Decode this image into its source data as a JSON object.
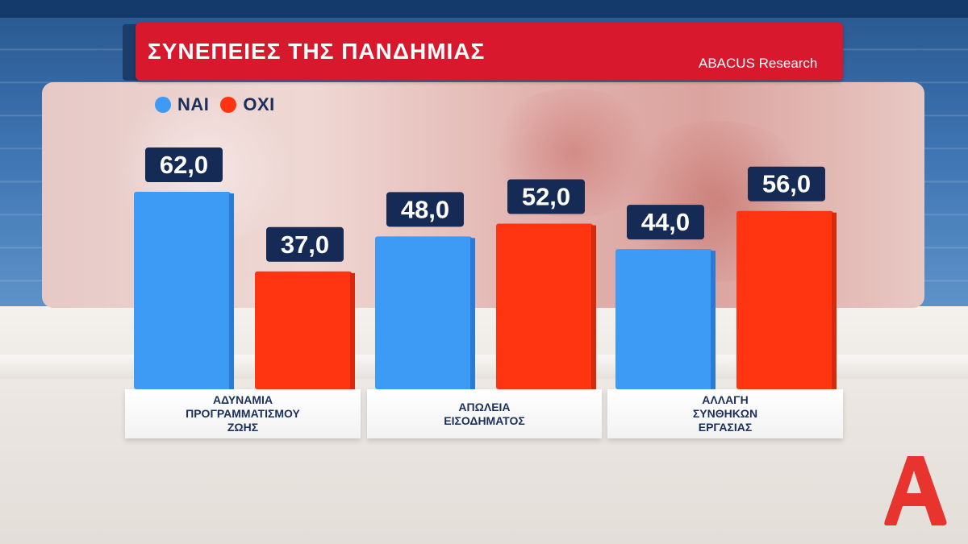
{
  "title": "ΣΥΝΕΠΕΙΕΣ ΤΗΣ ΠΑΝΔΗΜΙΑΣ",
  "source": "ABACUS Research",
  "colors": {
    "nai": "#3d9af5",
    "oxi": "#ff3411",
    "label_bg": "#152a55",
    "title_bg": "#d8182c"
  },
  "logo": {
    "icon": "alpha-logo-icon",
    "color": "#e8342f"
  },
  "chart_data": {
    "type": "bar",
    "categories": [
      "ΑΔΥΝΑΜΙΑ\nΠΡΟΓΡΑΜΜΑΤΙΣΜΟΥ\nΖΩΗΣ",
      "ΑΠΩΛΕΙΑ\nΕΙΣΟΔΗΜΑΤΟΣ",
      "ΑΛΛΑΓΗ\nΣΥΝΘΗΚΩΝ\nΕΡΓΑΣΙΑΣ"
    ],
    "series": [
      {
        "name": "ΝΑΙ",
        "values": [
          62.0,
          48.0,
          44.0
        ],
        "labels": [
          "62,0",
          "48,0",
          "44,0"
        ]
      },
      {
        "name": "ΟΧΙ",
        "values": [
          37.0,
          52.0,
          56.0
        ],
        "labels": [
          "37,0",
          "52,0",
          "56,0"
        ]
      }
    ],
    "ylim": [
      0,
      62
    ],
    "grid": false,
    "legend": "top-left"
  }
}
